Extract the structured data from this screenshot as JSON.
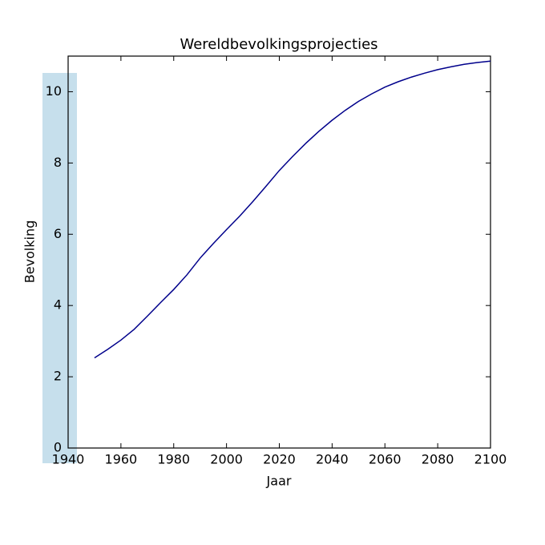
{
  "chart_data": {
    "type": "line",
    "title": "Wereldbevolkingsprojecties",
    "x_label": "Jaar",
    "y_label": "Bevolking",
    "x": [
      1950,
      1955,
      1960,
      1965,
      1970,
      1975,
      1980,
      1985,
      1990,
      1995,
      2000,
      2005,
      2010,
      2015,
      2020,
      2025,
      2030,
      2035,
      2040,
      2045,
      2050,
      2055,
      2060,
      2065,
      2070,
      2075,
      2080,
      2085,
      2090,
      2095,
      2100
    ],
    "series": [
      {
        "name": "Bevolking",
        "color": "#00008b",
        "values": [
          2.53,
          2.77,
          3.03,
          3.33,
          3.7,
          4.08,
          4.45,
          4.86,
          5.33,
          5.74,
          6.13,
          6.51,
          6.92,
          7.35,
          7.79,
          8.18,
          8.55,
          8.89,
          9.2,
          9.48,
          9.73,
          9.94,
          10.13,
          10.28,
          10.41,
          10.52,
          10.62,
          10.7,
          10.77,
          10.82,
          10.86
        ]
      }
    ],
    "xlim": [
      1940,
      2100
    ],
    "xticks": [
      1940,
      1960,
      1980,
      2000,
      2020,
      2040,
      2060,
      2080,
      2100
    ],
    "ylim": [
      0,
      11
    ],
    "yticks": [
      0,
      2,
      4,
      6,
      8,
      10
    ],
    "grid": false
  }
}
